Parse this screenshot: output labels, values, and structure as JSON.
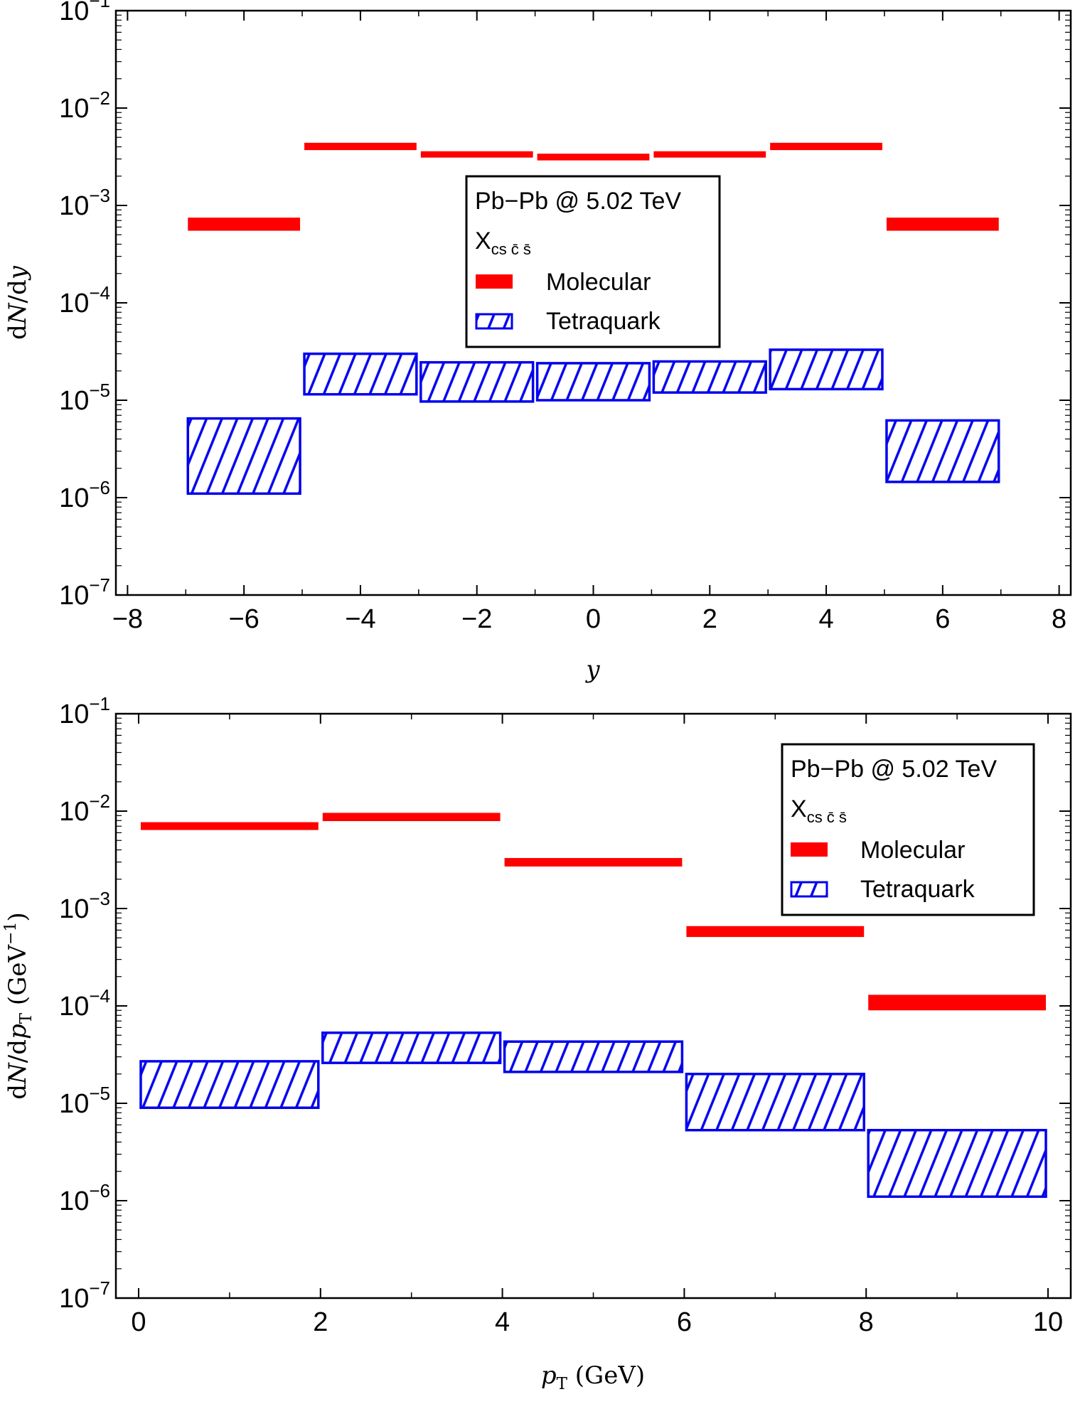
{
  "chart_data": [
    {
      "type": "bar",
      "plot_style": "binned uncertainty bands (log scale)",
      "xlabel": "y",
      "ylabel": "dN/dy",
      "xlim": [
        -8.2,
        8.2
      ],
      "ylim": [
        1e-07,
        0.1
      ],
      "yscale": "log",
      "xticks": [
        -8,
        -6,
        -4,
        -2,
        0,
        2,
        4,
        6,
        8
      ],
      "xtick_labels": [
        "−8",
        "−6",
        "−4",
        "−2",
        "0",
        "2",
        "4",
        "6",
        "8"
      ],
      "yticks": [
        {
          "base": "10",
          "exp": "−1"
        },
        {
          "base": "10",
          "exp": "−2"
        },
        {
          "base": "10",
          "exp": "−3"
        },
        {
          "base": "10",
          "exp": "−4"
        },
        {
          "base": "10",
          "exp": "−5"
        },
        {
          "base": "10",
          "exp": "−6"
        },
        {
          "base": "10",
          "exp": "−7"
        }
      ],
      "legend": {
        "placement": "center",
        "title": "Pb−Pb @ 5.02 TeV",
        "particle": {
          "main": "X",
          "sub": "cs c̄ s̄"
        },
        "entries": [
          "Molecular",
          "Tetraquark"
        ]
      },
      "series": [
        {
          "name": "Molecular",
          "color": "#ff0000",
          "style": "solid",
          "bins": [
            {
              "x0": -7,
              "x1": -5,
              "low": 0.00055,
              "high": 0.00075
            },
            {
              "x0": -5,
              "x1": -3,
              "low": 0.0037,
              "high": 0.0044
            },
            {
              "x0": -3,
              "x1": -1,
              "low": 0.0031,
              "high": 0.0036
            },
            {
              "x0": -1,
              "x1": 1,
              "low": 0.0029,
              "high": 0.0034
            },
            {
              "x0": 1,
              "x1": 3,
              "low": 0.0031,
              "high": 0.0036
            },
            {
              "x0": 3,
              "x1": 5,
              "low": 0.0037,
              "high": 0.0044
            },
            {
              "x0": 5,
              "x1": 7,
              "low": 0.00055,
              "high": 0.00075
            }
          ]
        },
        {
          "name": "Tetraquark",
          "color": "#0000ee",
          "style": "hatched",
          "bins": [
            {
              "x0": -7,
              "x1": -5,
              "low": 1.1e-06,
              "high": 6.5e-06
            },
            {
              "x0": -5,
              "x1": -3,
              "low": 1.15e-05,
              "high": 3e-05
            },
            {
              "x0": -3,
              "x1": -1,
              "low": 9.7e-06,
              "high": 2.45e-05
            },
            {
              "x0": -1,
              "x1": 1,
              "low": 1e-05,
              "high": 2.4e-05
            },
            {
              "x0": 1,
              "x1": 3,
              "low": 1.2e-05,
              "high": 2.5e-05
            },
            {
              "x0": 3,
              "x1": 5,
              "low": 1.3e-05,
              "high": 3.3e-05
            },
            {
              "x0": 5,
              "x1": 7,
              "low": 1.45e-06,
              "high": 6.2e-06
            }
          ]
        }
      ]
    },
    {
      "type": "bar",
      "plot_style": "binned uncertainty bands (log scale)",
      "xlabel": "p_T (GeV)",
      "ylabel": "dN/dp_T (GeV^-1)",
      "xlim": [
        -0.25,
        10.25
      ],
      "ylim": [
        1e-07,
        0.1
      ],
      "yscale": "log",
      "xticks": [
        0,
        2,
        4,
        6,
        8,
        10
      ],
      "xtick_labels": [
        "0",
        "2",
        "4",
        "6",
        "8",
        "10"
      ],
      "yticks": [
        {
          "base": "10",
          "exp": "−1"
        },
        {
          "base": "10",
          "exp": "−2"
        },
        {
          "base": "10",
          "exp": "−3"
        },
        {
          "base": "10",
          "exp": "−4"
        },
        {
          "base": "10",
          "exp": "−5"
        },
        {
          "base": "10",
          "exp": "−6"
        },
        {
          "base": "10",
          "exp": "−7"
        }
      ],
      "legend": {
        "placement": "top-right",
        "title": "Pb−Pb @ 5.02 TeV",
        "particle": {
          "main": "X",
          "sub": "cs c̄ s̄"
        },
        "entries": [
          "Molecular",
          "Tetraquark"
        ]
      },
      "series": [
        {
          "name": "Molecular",
          "color": "#ff0000",
          "style": "solid",
          "bins": [
            {
              "x0": 0,
              "x1": 2,
              "low": 0.0064,
              "high": 0.0077
            },
            {
              "x0": 2,
              "x1": 4,
              "low": 0.0079,
              "high": 0.0096
            },
            {
              "x0": 4,
              "x1": 6,
              "low": 0.0027,
              "high": 0.0033
            },
            {
              "x0": 6,
              "x1": 8,
              "low": 0.00051,
              "high": 0.00066
            },
            {
              "x0": 8,
              "x1": 10,
              "low": 9e-05,
              "high": 0.00013
            }
          ]
        },
        {
          "name": "Tetraquark",
          "color": "#0000ee",
          "style": "hatched",
          "bins": [
            {
              "x0": 0,
              "x1": 2,
              "low": 9e-06,
              "high": 2.7e-05
            },
            {
              "x0": 2,
              "x1": 4,
              "low": 2.6e-05,
              "high": 5.3e-05
            },
            {
              "x0": 4,
              "x1": 6,
              "low": 2.1e-05,
              "high": 4.3e-05
            },
            {
              "x0": 6,
              "x1": 8,
              "low": 5.3e-06,
              "high": 2e-05
            },
            {
              "x0": 8,
              "x1": 10,
              "low": 1.1e-06,
              "high": 5.3e-06
            }
          ]
        }
      ]
    }
  ]
}
